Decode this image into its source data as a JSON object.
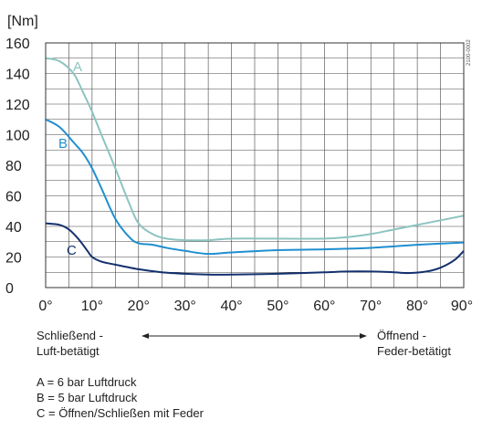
{
  "chart_data": {
    "type": "line",
    "ylabel": "[Nm]",
    "xlabel": "",
    "xlim": [
      0,
      90
    ],
    "ylim": [
      0,
      160
    ],
    "x_ticks": [
      0,
      10,
      20,
      30,
      40,
      50,
      60,
      70,
      80,
      90
    ],
    "x_tick_labels": [
      "0°",
      "10°",
      "20°",
      "30°",
      "40°",
      "50°",
      "60°",
      "70°",
      "80°",
      "90°"
    ],
    "y_ticks": [
      0,
      20,
      40,
      60,
      80,
      100,
      120,
      140,
      160
    ],
    "y_tick_labels": [
      "0",
      "20",
      "40",
      "60",
      "80",
      "100",
      "120",
      "140",
      "160"
    ],
    "grid": true,
    "series": [
      {
        "name": "A",
        "color": "#8cc4c0",
        "x": [
          0,
          3,
          6,
          8,
          10,
          12,
          15,
          18,
          20,
          23,
          26,
          30,
          35,
          40,
          50,
          60,
          65,
          70,
          75,
          80,
          85,
          90
        ],
        "y": [
          150,
          148,
          140,
          128,
          115,
          100,
          78,
          55,
          42,
          35,
          32,
          31,
          31,
          32,
          32,
          32,
          33,
          35,
          38,
          41,
          44,
          47
        ]
      },
      {
        "name": "B",
        "color": "#1f8fcf",
        "x": [
          0,
          3,
          6,
          8,
          10,
          12,
          15,
          18,
          20,
          23,
          26,
          30,
          35,
          40,
          50,
          60,
          70,
          80,
          90
        ],
        "y": [
          110,
          105,
          95,
          88,
          78,
          65,
          45,
          33,
          29,
          28,
          26,
          24,
          22,
          23,
          24.5,
          25,
          26,
          28,
          29.5
        ]
      },
      {
        "name": "C",
        "color": "#13306e",
        "x": [
          0,
          3,
          5,
          7,
          9,
          10,
          12,
          15,
          20,
          25,
          30,
          35,
          40,
          50,
          60,
          65,
          70,
          75,
          78,
          82,
          85,
          88,
          90
        ],
        "y": [
          42,
          41,
          38,
          32,
          24,
          20,
          17,
          15,
          12,
          10,
          9,
          8.5,
          8.5,
          9,
          10,
          10.5,
          10.5,
          10,
          9.5,
          10.5,
          13,
          18,
          24
        ]
      }
    ],
    "watermark": "2100-0002"
  },
  "annotations": {
    "left_line1": "Schließend -",
    "left_line2": "Luft-betätigt",
    "right_line1": "Öffnend -",
    "right_line2": "Feder-betätigt"
  },
  "legend": [
    "A = 6 bar Luftdruck",
    "B = 5 bar Luftdruck",
    "C = Öffnen/Schließen mit Feder"
  ]
}
